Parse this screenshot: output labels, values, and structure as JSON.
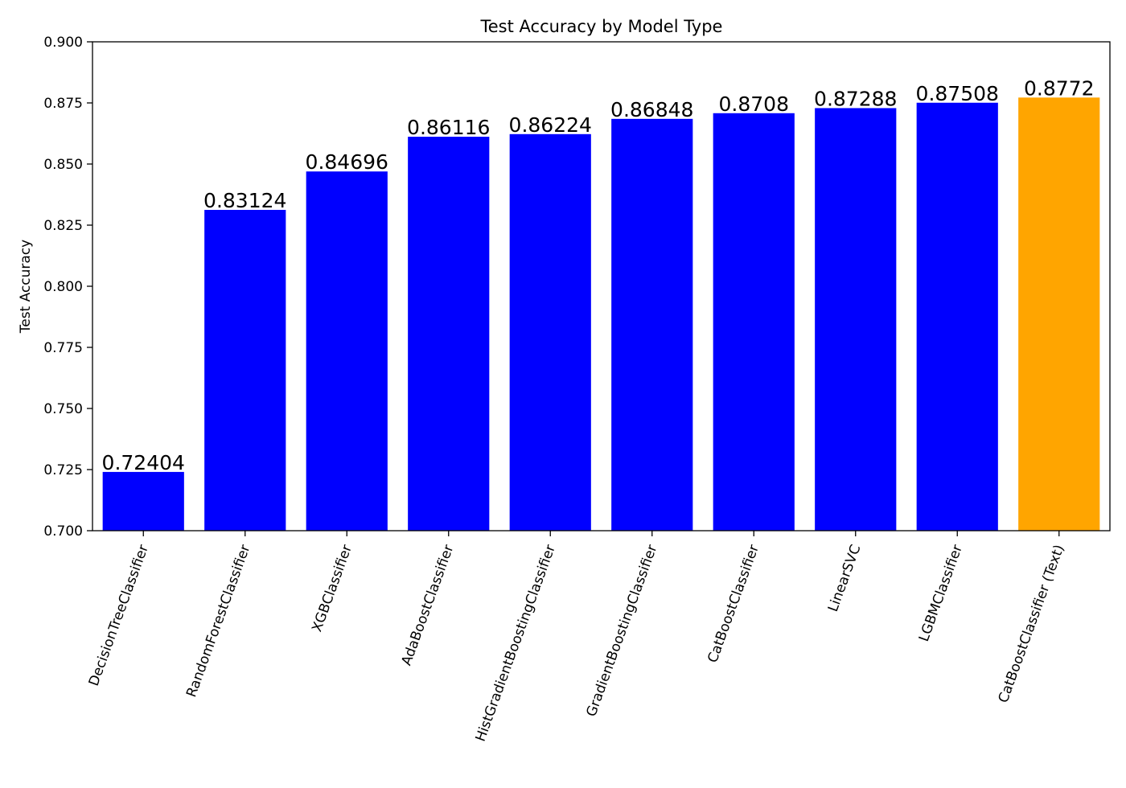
{
  "chart_data": {
    "type": "bar",
    "title": "Test Accuracy by Model Type",
    "xlabel": "",
    "ylabel": "Test Accuracy",
    "ylim": [
      0.7,
      0.9
    ],
    "yticks": [
      "0.700",
      "0.725",
      "0.750",
      "0.775",
      "0.800",
      "0.825",
      "0.850",
      "0.875",
      "0.900"
    ],
    "categories": [
      "DecisionTreeClassifier",
      "RandomForestClassifier",
      "XGBClassifier",
      "AdaBoostClassifier",
      "HistGradientBoostingClassifier",
      "GradientBoostingClassifier",
      "CatBoostClassifier",
      "LinearSVC",
      "LGBMClassifier",
      "CatBoostClassifier (Text)"
    ],
    "values": [
      0.72404,
      0.83124,
      0.84696,
      0.86116,
      0.86224,
      0.86848,
      0.8708,
      0.87288,
      0.87508,
      0.8772
    ],
    "value_labels": [
      "0.72404",
      "0.83124",
      "0.84696",
      "0.86116",
      "0.86224",
      "0.86848",
      "0.8708",
      "0.87288",
      "0.87508",
      "0.8772"
    ],
    "colors": [
      "#0000ff",
      "#0000ff",
      "#0000ff",
      "#0000ff",
      "#0000ff",
      "#0000ff",
      "#0000ff",
      "#0000ff",
      "#0000ff",
      "#ffa500"
    ],
    "grid": false,
    "legend": "none"
  }
}
